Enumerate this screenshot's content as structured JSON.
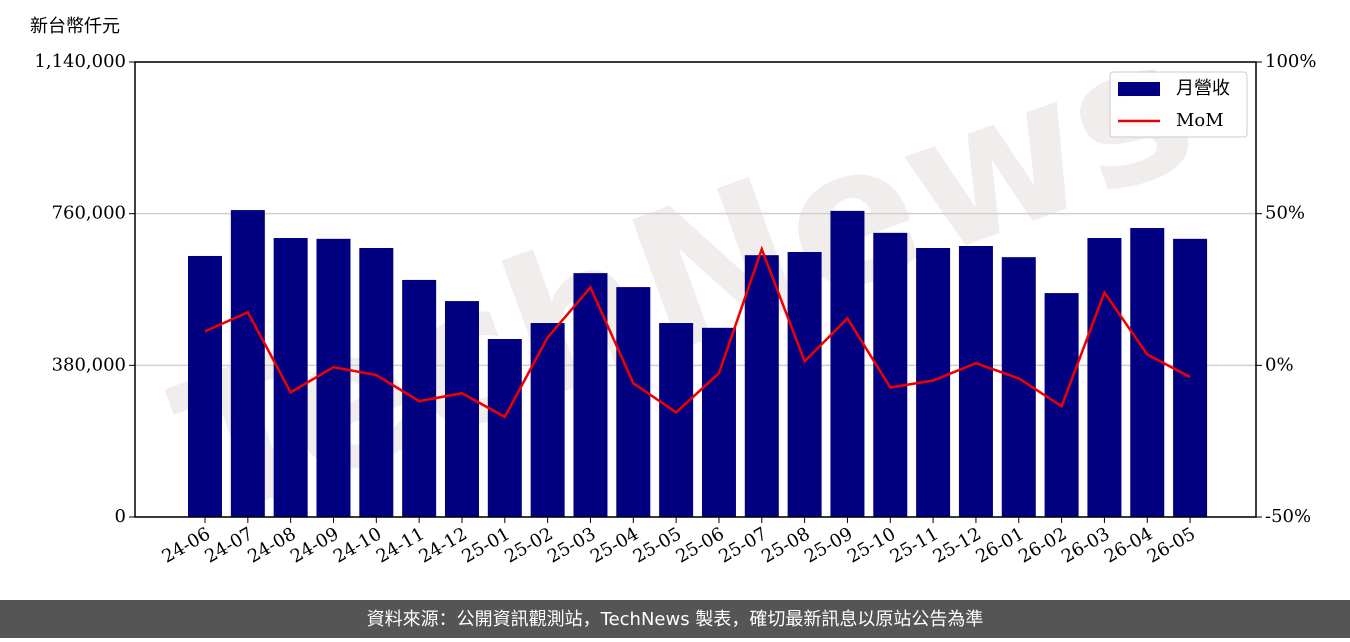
{
  "chart_data": {
    "type": "bar_line",
    "y_label": "新台幣仟元",
    "categories": [
      "24-06",
      "24-07",
      "24-08",
      "24-09",
      "24-10",
      "24-11",
      "24-12",
      "25-01",
      "25-02",
      "25-03",
      "25-04",
      "25-05",
      "25-06",
      "25-07",
      "25-08",
      "25-09",
      "25-10",
      "25-11",
      "25-12",
      "26-01",
      "26-02",
      "26-03",
      "26-04",
      "26-05"
    ],
    "series": [
      {
        "name": "月營收",
        "type": "bar",
        "color": "#000080",
        "values": [
          654000,
          769000,
          699000,
          697000,
          674000,
          594000,
          541000,
          446000,
          486000,
          611000,
          576000,
          486000,
          474000,
          656000,
          664000,
          767000,
          712000,
          674000,
          679000,
          651000,
          561000,
          699000,
          724000,
          697000
        ]
      },
      {
        "name": "MoM",
        "type": "line",
        "axis": "y2",
        "color": "#ee0000",
        "values": [
          11.2,
          17.5,
          -8.9,
          -0.6,
          -3.2,
          -11.8,
          -9.2,
          -17.0,
          9.2,
          25.7,
          -5.9,
          -15.5,
          -2.6,
          38.3,
          1.3,
          15.5,
          -7.3,
          -5.0,
          0.7,
          -4.3,
          -13.5,
          24.0,
          3.6,
          -3.9
        ]
      }
    ],
    "ylim": [
      0,
      1140000
    ],
    "yticks": [
      0,
      {
        "value": 380000,
        "label": "380,000"
      },
      {
        "value": 760000,
        "label": "760,000"
      },
      {
        "value": 1140000,
        "label": "1,140,000"
      }
    ],
    "y2lim": [
      -50,
      100
    ],
    "y2ticks": [
      {
        "value": -50,
        "label": "-50%"
      },
      {
        "value": 0,
        "label": "0%"
      },
      {
        "value": 50,
        "label": "50%"
      },
      {
        "value": 100,
        "label": "100%"
      }
    ],
    "grid": true,
    "legend": "upper right",
    "watermark": "TechNews",
    "footer": "資料來源：公開資訊觀測站，TechNews 製表，確切最新訊息以原站公告為準"
  }
}
